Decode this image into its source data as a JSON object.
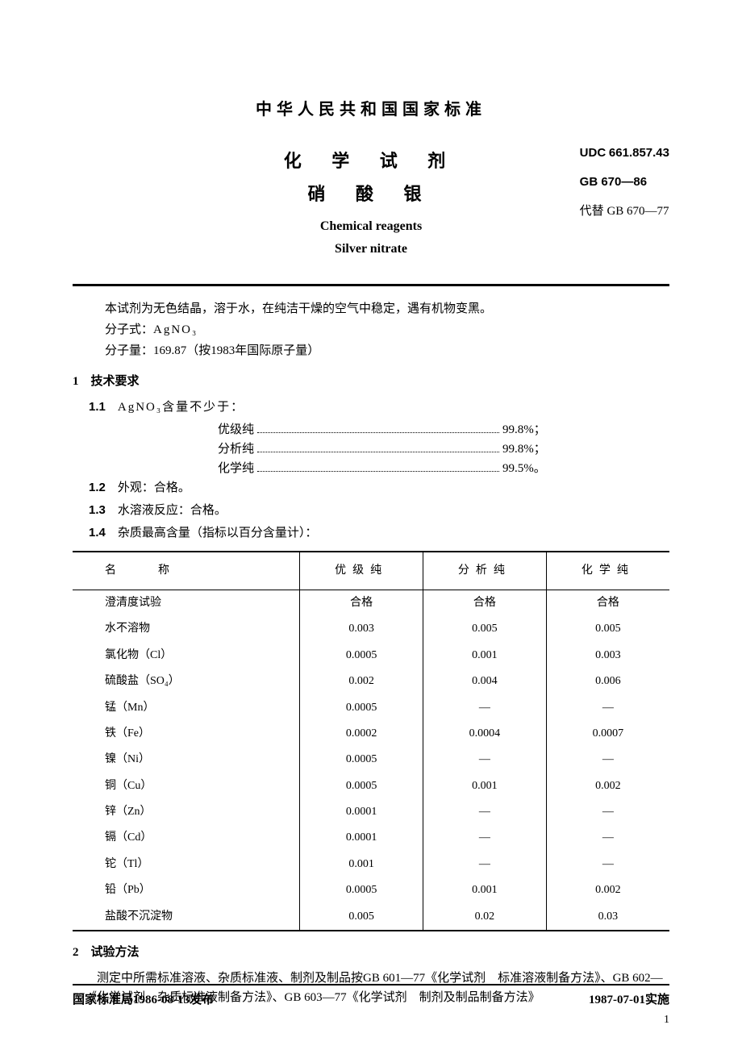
{
  "header": {
    "national_standard": "中华人民共和国国家标准",
    "title_cn_line1": "化 学 试 剂",
    "title_cn_line2": "硝 酸 银",
    "title_en_line1": "Chemical reagents",
    "title_en_line2": "Silver nitrate",
    "udc_label": "UDC",
    "udc_code": "661.857.43",
    "gb_code": "GB 670—86",
    "replaces_label": "代替",
    "replaces_code": "GB 670—77"
  },
  "intro": {
    "line1": "本试剂为无色结晶，溶于水，在纯洁干燥的空气中稳定，遇有机物变黑。",
    "formula_label": "分子式：",
    "formula_value": "AgNO₃",
    "mw_label": "分子量：",
    "mw_value": "169.87（按1983年国际原子量）"
  },
  "section1": {
    "heading_no": "1",
    "heading": "技术要求",
    "i11_no": "1.1",
    "i11_text": "AgNO₃含量不少于：",
    "purity": [
      {
        "grade": "优级纯",
        "value": "99.8%；"
      },
      {
        "grade": "分析纯",
        "value": "99.8%；"
      },
      {
        "grade": "化学纯",
        "value": "99.5%。"
      }
    ],
    "i12_no": "1.2",
    "i12_text": "外观：合格。",
    "i13_no": "1.3",
    "i13_text": "水溶液反应：合格。",
    "i14_no": "1.4",
    "i14_text": "杂质最高含量（指标以百分含量计）："
  },
  "imp_table": {
    "headers": [
      "名　　称",
      "优级纯",
      "分析纯",
      "化学纯"
    ],
    "rows": [
      [
        "澄清度试验",
        "合格",
        "合格",
        "合格"
      ],
      [
        "水不溶物",
        "0.003",
        "0.005",
        "0.005"
      ],
      [
        "氯化物（Cl）",
        "0.0005",
        "0.001",
        "0.003"
      ],
      [
        "硫酸盐（SO₄）",
        "0.002",
        "0.004",
        "0.006"
      ],
      [
        "锰（Mn）",
        "0.0005",
        "—",
        "—"
      ],
      [
        "铁（Fe）",
        "0.0002",
        "0.0004",
        "0.0007"
      ],
      [
        "镍（Ni）",
        "0.0005",
        "—",
        "—"
      ],
      [
        "铜（Cu）",
        "0.0005",
        "0.001",
        "0.002"
      ],
      [
        "锌（Zn）",
        "0.0001",
        "—",
        "—"
      ],
      [
        "镉（Cd）",
        "0.0001",
        "—",
        "—"
      ],
      [
        "铊（Tl）",
        "0.001",
        "—",
        "—"
      ],
      [
        "铅（Pb）",
        "0.0005",
        "0.001",
        "0.002"
      ],
      [
        "盐酸不沉淀物",
        "0.005",
        "0.02",
        "0.03"
      ]
    ]
  },
  "section2": {
    "heading_no": "2",
    "heading": "试验方法",
    "para": "测定中所需标准溶液、杂质标准液、制剂及制品按GB 601—77《化学试剂　标准溶液制备方法》、GB 602—77《化学试剂　杂质标准液制备方法》、GB 603—77《化学试剂　制剂及制品制备方法》"
  },
  "footer": {
    "left": "国家标准局1986-08-13发布",
    "right": "1987-07-01实施",
    "page": "1"
  }
}
